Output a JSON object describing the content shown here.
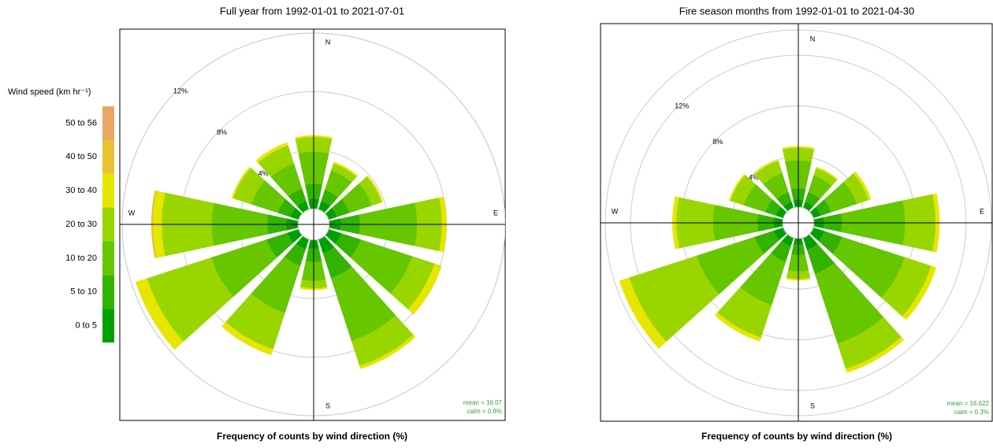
{
  "chart_data": [
    {
      "type": "windrose",
      "title": "Full year from 1992-01-01 to 2021-07-01",
      "xlabel": "Frequency of counts by wind direction (%)",
      "legend_title": "Wind speed (km hr⁻¹)",
      "x": [
        0,
        30,
        60,
        90,
        120,
        150,
        180,
        210,
        240,
        270,
        300,
        330
      ],
      "rlim": [
        0,
        12
      ],
      "rticks": [
        {
          "value": 4,
          "label": "4%"
        },
        {
          "value": 8,
          "label": "8%"
        },
        {
          "value": 12,
          "label": "12%"
        }
      ],
      "direction_labels": [
        {
          "value": 0,
          "label": "N"
        },
        {
          "value": 90,
          "label": "E"
        },
        {
          "value": 180,
          "label": "S"
        },
        {
          "value": 270,
          "label": "W"
        }
      ],
      "annotations": [
        "mean = 16.07",
        "calm = 0.8%"
      ],
      "series": [
        {
          "name": "0 to 5",
          "color": "#00a000",
          "values": [
            0.7,
            0.6,
            0.6,
            0.8,
            0.9,
            1.0,
            0.6,
            0.7,
            0.8,
            0.8,
            0.6,
            0.6
          ]
        },
        {
          "name": "5 to 10",
          "color": "#33b300",
          "values": [
            1.0,
            0.8,
            0.9,
            1.3,
            1.4,
            1.8,
            0.9,
            1.2,
            1.5,
            1.3,
            0.9,
            0.9
          ]
        },
        {
          "name": "10 to 20",
          "color": "#66c600",
          "values": [
            2.2,
            1.4,
            1.6,
            3.9,
            3.7,
            4.5,
            1.3,
            3.4,
            4.0,
            3.8,
            1.9,
            1.8
          ]
        },
        {
          "name": "20 to 30",
          "color": "#99d600",
          "values": [
            1.0,
            0.5,
            0.7,
            1.7,
            1.6,
            1.8,
            0.5,
            2.6,
            4.6,
            3.4,
            1.3,
            1.3
          ]
        },
        {
          "name": "30 to 40",
          "color": "#e6e600",
          "values": [
            0.1,
            0.1,
            0.1,
            0.3,
            0.5,
            0.2,
            0.1,
            0.4,
            0.8,
            0.6,
            0.1,
            0.2
          ]
        },
        {
          "name": "40 to 50",
          "color": "#e8c232",
          "values": [
            0,
            0,
            0,
            0,
            0,
            0,
            0,
            0,
            0,
            0.1,
            0,
            0
          ]
        },
        {
          "name": "50 to 56",
          "color": "#e8a862",
          "values": [
            0,
            0,
            0,
            0,
            0,
            0,
            0,
            0,
            0,
            0,
            0,
            0
          ]
        }
      ]
    },
    {
      "type": "windrose",
      "title": "Fire season months from 1992-01-01 to 2021-04-30",
      "xlabel": "Frequency of counts by wind direction (%)",
      "x": [
        0,
        30,
        60,
        90,
        120,
        150,
        180,
        210,
        240,
        270,
        300,
        330
      ],
      "rlim": [
        0,
        14
      ],
      "rticks": [
        {
          "value": 4,
          "label": "4%"
        },
        {
          "value": 8,
          "label": "8%"
        },
        {
          "value": 12,
          "label": "12%"
        }
      ],
      "direction_labels": [
        {
          "value": 0,
          "label": "N"
        },
        {
          "value": 90,
          "label": "E"
        },
        {
          "value": 180,
          "label": "S"
        },
        {
          "value": 270,
          "label": "W"
        }
      ],
      "annotations": [
        "mean = 16.622",
        "calm = 0.3%"
      ],
      "series": [
        {
          "color": "#00a000",
          "values": [
            0.6,
            0.5,
            0.6,
            0.8,
            0.9,
            1.0,
            0.5,
            0.7,
            0.8,
            0.7,
            0.6,
            0.5
          ]
        },
        {
          "color": "#33b300",
          "values": [
            0.9,
            0.8,
            0.9,
            1.4,
            1.5,
            2.0,
            0.8,
            1.3,
            1.6,
            1.3,
            0.9,
            0.8
          ]
        },
        {
          "color": "#66c600",
          "values": [
            2.2,
            1.4,
            2.1,
            5.0,
            5.2,
            5.8,
            1.3,
            3.6,
            4.8,
            3.5,
            1.8,
            1.6
          ]
        },
        {
          "color": "#99d600",
          "values": [
            1.0,
            0.6,
            1.0,
            2.4,
            2.2,
            2.1,
            0.6,
            2.7,
            5.6,
            2.9,
            1.1,
            1.0
          ]
        },
        {
          "color": "#e6e600",
          "values": [
            0.1,
            0.1,
            0.2,
            0.3,
            0.4,
            0.3,
            0.1,
            0.3,
            0.8,
            0.3,
            0.1,
            0.1
          ]
        },
        {
          "color": "#e8c232",
          "values": [
            0,
            0,
            0,
            0,
            0,
            0,
            0,
            0,
            0,
            0,
            0,
            0
          ]
        },
        {
          "color": "#e8a862",
          "values": [
            0,
            0,
            0,
            0,
            0,
            0,
            0,
            0,
            0,
            0,
            0,
            0
          ]
        }
      ]
    }
  ]
}
